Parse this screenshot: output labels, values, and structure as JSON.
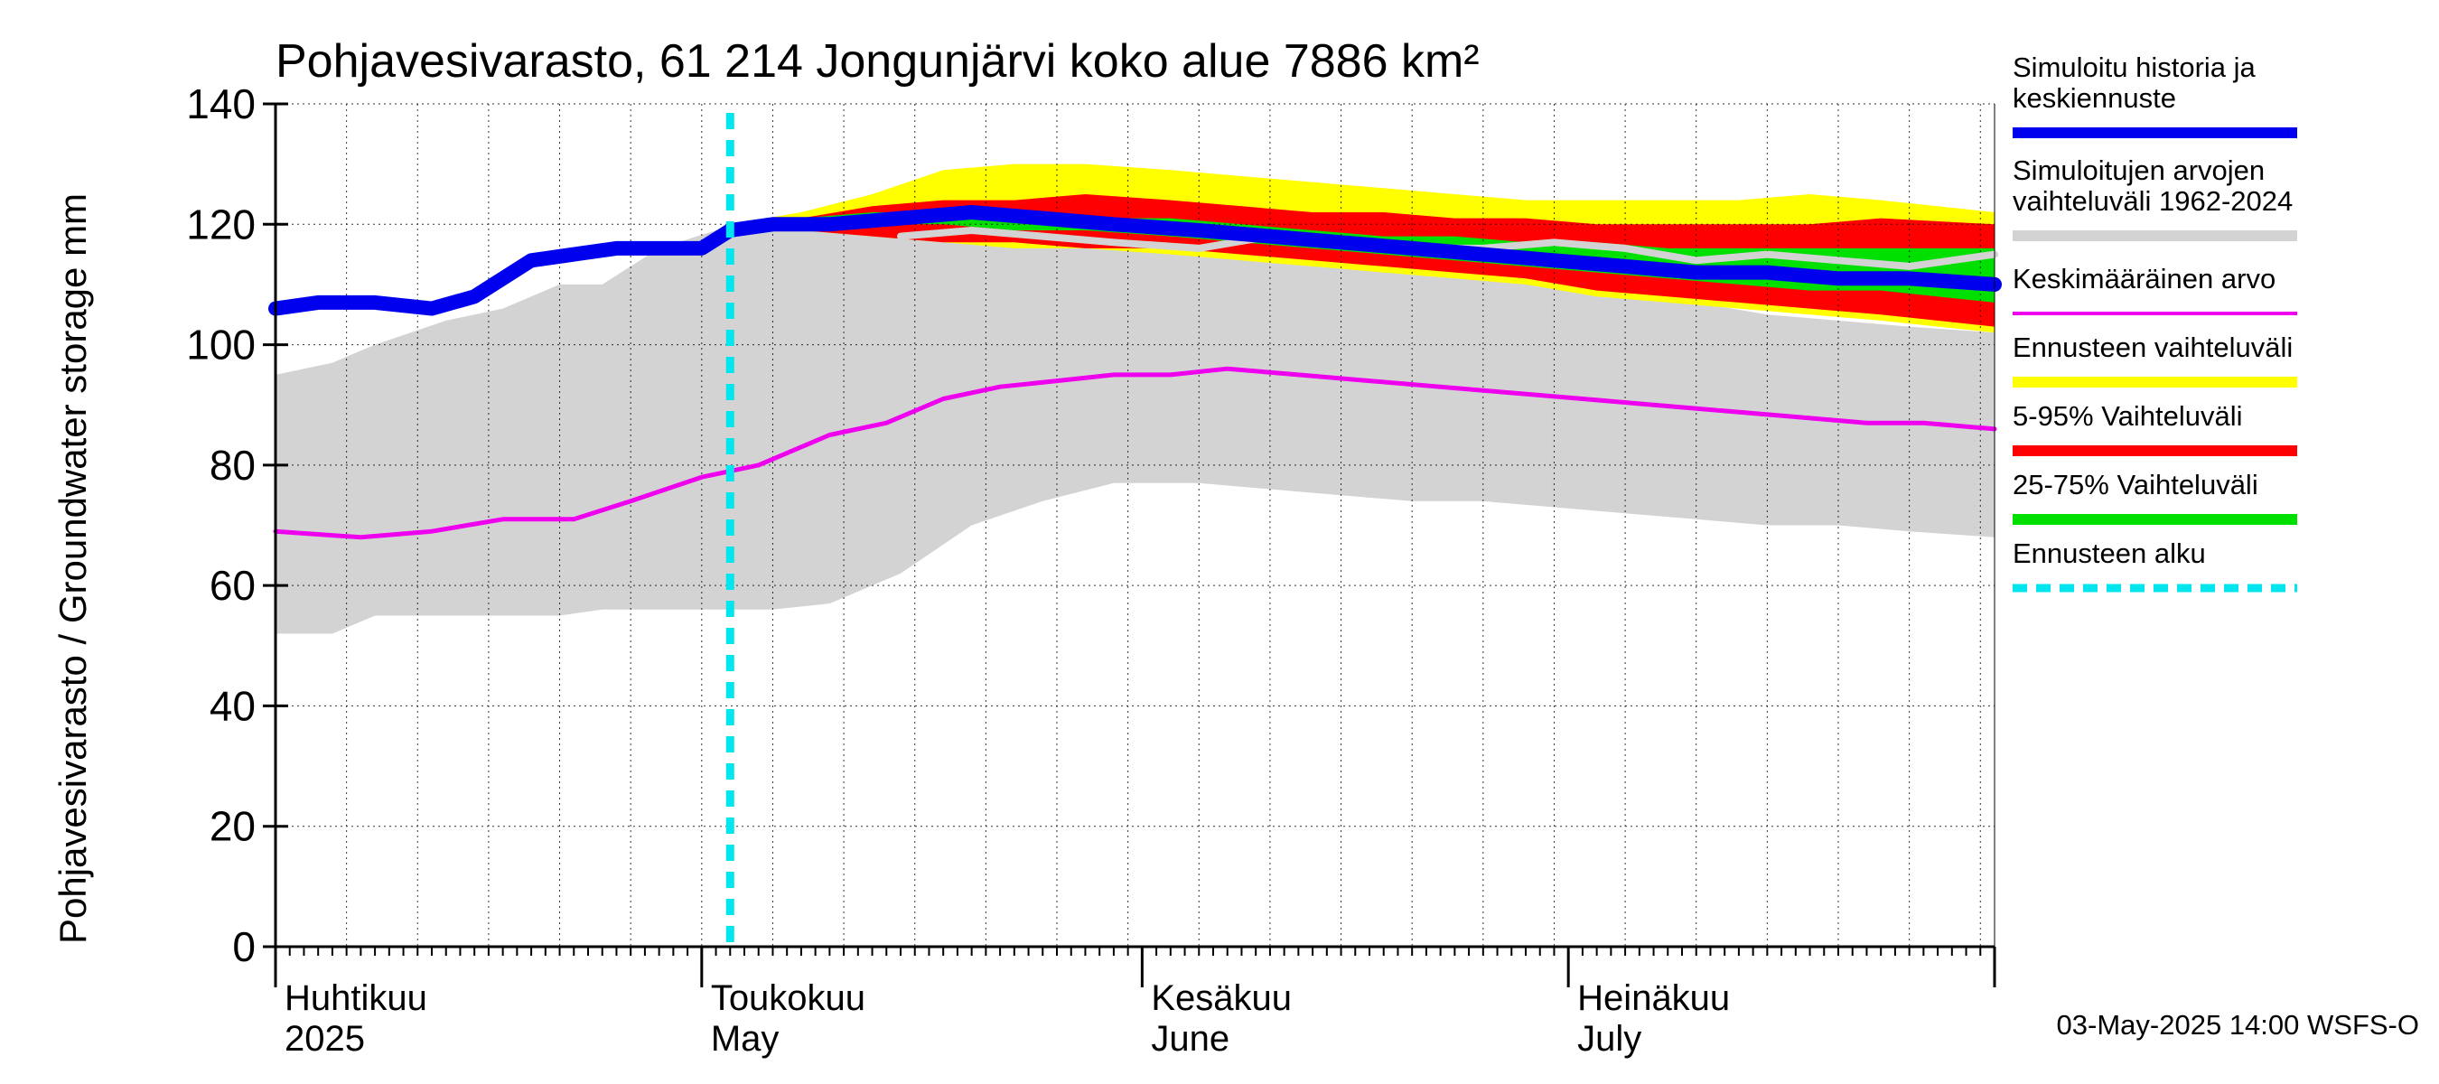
{
  "chart_data": {
    "type": "area",
    "title": "Pohjavesivarasto, 61 214 Jongunjärvi koko alue 7886 km²",
    "ylabel": "Pohjavesivarasto / Groundwater storage   mm",
    "ylim": [
      0,
      140
    ],
    "yticks": [
      0,
      20,
      40,
      60,
      80,
      100,
      120,
      140
    ],
    "grid": true,
    "legend_position": "right",
    "x_start": "2025-04-01",
    "x_end": "2025-07-31",
    "forecast_start": "2025-05-03",
    "month_labels": [
      {
        "fi": "Huhtikuu",
        "en": "2025",
        "date": "2025-04-01"
      },
      {
        "fi": "Toukokuu",
        "en": "May",
        "date": "2025-05-01"
      },
      {
        "fi": "Kesäkuu",
        "en": "June",
        "date": "2025-06-01"
      },
      {
        "fi": "Heinäkuu",
        "en": "July",
        "date": "2025-07-01"
      }
    ],
    "series": [
      {
        "name": "Simuloitujen arvojen vaihteluväli 1962-2024",
        "color": "#d3d3d3",
        "kind": "band",
        "points": [
          [
            "2025-04-01",
            52,
            95
          ],
          [
            "2025-04-05",
            52,
            97
          ],
          [
            "2025-04-08",
            55,
            100
          ],
          [
            "2025-04-13",
            55,
            104
          ],
          [
            "2025-04-17",
            55,
            106
          ],
          [
            "2025-04-21",
            55,
            110
          ],
          [
            "2025-04-24",
            56,
            110
          ],
          [
            "2025-04-28",
            56,
            116
          ],
          [
            "2025-05-02",
            56,
            119
          ],
          [
            "2025-05-06",
            56,
            120
          ],
          [
            "2025-05-10",
            57,
            121
          ],
          [
            "2025-05-15",
            62,
            121
          ],
          [
            "2025-05-20",
            70,
            120
          ],
          [
            "2025-05-25",
            74,
            119
          ],
          [
            "2025-05-30",
            77,
            118
          ],
          [
            "2025-06-05",
            77,
            117
          ],
          [
            "2025-06-10",
            76,
            116
          ],
          [
            "2025-06-15",
            75,
            115
          ],
          [
            "2025-06-20",
            74,
            113
          ],
          [
            "2025-06-25",
            74,
            112
          ],
          [
            "2025-06-30",
            73,
            110
          ],
          [
            "2025-07-05",
            72,
            109
          ],
          [
            "2025-07-10",
            71,
            107
          ],
          [
            "2025-07-15",
            70,
            105
          ],
          [
            "2025-07-20",
            70,
            104
          ],
          [
            "2025-07-25",
            69,
            103
          ],
          [
            "2025-07-31",
            68,
            102
          ]
        ]
      },
      {
        "name": "Ennusteen vaihteluväli",
        "color": "#ffff00",
        "kind": "band",
        "points": [
          [
            "2025-05-03",
            119,
            120
          ],
          [
            "2025-05-08",
            119,
            122
          ],
          [
            "2025-05-13",
            118,
            125
          ],
          [
            "2025-05-18",
            117,
            129
          ],
          [
            "2025-05-23",
            116,
            130
          ],
          [
            "2025-05-28",
            116,
            130
          ],
          [
            "2025-06-03",
            115,
            129
          ],
          [
            "2025-06-08",
            114,
            128
          ],
          [
            "2025-06-13",
            113,
            127
          ],
          [
            "2025-06-18",
            112,
            126
          ],
          [
            "2025-06-23",
            111,
            125
          ],
          [
            "2025-06-28",
            110,
            124
          ],
          [
            "2025-07-03",
            108,
            124
          ],
          [
            "2025-07-08",
            107,
            124
          ],
          [
            "2025-07-13",
            106,
            124
          ],
          [
            "2025-07-18",
            105,
            125
          ],
          [
            "2025-07-23",
            104,
            124
          ],
          [
            "2025-07-31",
            102,
            122
          ]
        ]
      },
      {
        "name": "5-95% Vaihteluväli",
        "color": "#ff0000",
        "kind": "band",
        "points": [
          [
            "2025-05-03",
            119,
            120
          ],
          [
            "2025-05-08",
            119,
            121
          ],
          [
            "2025-05-13",
            118,
            123
          ],
          [
            "2025-05-18",
            117,
            124
          ],
          [
            "2025-05-23",
            117,
            124
          ],
          [
            "2025-05-28",
            116,
            125
          ],
          [
            "2025-06-03",
            116,
            124
          ],
          [
            "2025-06-08",
            115,
            123
          ],
          [
            "2025-06-13",
            114,
            122
          ],
          [
            "2025-06-18",
            113,
            122
          ],
          [
            "2025-06-23",
            112,
            121
          ],
          [
            "2025-06-28",
            111,
            121
          ],
          [
            "2025-07-03",
            109,
            120
          ],
          [
            "2025-07-08",
            108,
            120
          ],
          [
            "2025-07-13",
            107,
            120
          ],
          [
            "2025-07-18",
            106,
            120
          ],
          [
            "2025-07-23",
            105,
            121
          ],
          [
            "2025-07-31",
            103,
            120
          ]
        ]
      },
      {
        "name": "25-75% Vaihteluväli",
        "color": "#00e000",
        "kind": "band",
        "points": [
          [
            "2025-05-03",
            119,
            120
          ],
          [
            "2025-05-08",
            120,
            121
          ],
          [
            "2025-05-13",
            120,
            122
          ],
          [
            "2025-05-18",
            120,
            122
          ],
          [
            "2025-05-23",
            119,
            122
          ],
          [
            "2025-05-28",
            119,
            121
          ],
          [
            "2025-06-03",
            118,
            121
          ],
          [
            "2025-06-08",
            117,
            120
          ],
          [
            "2025-06-13",
            116,
            119
          ],
          [
            "2025-06-18",
            115,
            118
          ],
          [
            "2025-06-23",
            114,
            118
          ],
          [
            "2025-06-28",
            113,
            117
          ],
          [
            "2025-07-03",
            112,
            117
          ],
          [
            "2025-07-08",
            111,
            116
          ],
          [
            "2025-07-13",
            110,
            116
          ],
          [
            "2025-07-18",
            109,
            116
          ],
          [
            "2025-07-23",
            109,
            116
          ],
          [
            "2025-07-31",
            107,
            116
          ]
        ]
      },
      {
        "name": "Simuloitu historia ja keskiennuste",
        "color": "#0000ee",
        "kind": "line",
        "points": [
          [
            "2025-04-01",
            106
          ],
          [
            "2025-04-04",
            107
          ],
          [
            "2025-04-08",
            107
          ],
          [
            "2025-04-12",
            106
          ],
          [
            "2025-04-15",
            108
          ],
          [
            "2025-04-19",
            114
          ],
          [
            "2025-04-22",
            115
          ],
          [
            "2025-04-25",
            116
          ],
          [
            "2025-04-29",
            116
          ],
          [
            "2025-05-01",
            116
          ],
          [
            "2025-05-03",
            119
          ],
          [
            "2025-05-06",
            120
          ],
          [
            "2025-05-10",
            120
          ],
          [
            "2025-05-15",
            121
          ],
          [
            "2025-05-20",
            122
          ],
          [
            "2025-05-25",
            121
          ],
          [
            "2025-05-30",
            120
          ],
          [
            "2025-06-05",
            119
          ],
          [
            "2025-06-10",
            118
          ],
          [
            "2025-06-15",
            117
          ],
          [
            "2025-06-20",
            116
          ],
          [
            "2025-06-25",
            115
          ],
          [
            "2025-06-30",
            114
          ],
          [
            "2025-07-05",
            113
          ],
          [
            "2025-07-10",
            112
          ],
          [
            "2025-07-15",
            112
          ],
          [
            "2025-07-20",
            111
          ],
          [
            "2025-07-25",
            111
          ],
          [
            "2025-07-31",
            110
          ]
        ]
      },
      {
        "name": "gray-line",
        "color": "#d3d3d3",
        "kind": "line",
        "points": [
          [
            "2025-05-15",
            118
          ],
          [
            "2025-05-20",
            119
          ],
          [
            "2025-05-25",
            118
          ],
          [
            "2025-05-30",
            117
          ],
          [
            "2025-06-05",
            116
          ],
          [
            "2025-06-10",
            118
          ],
          [
            "2025-06-15",
            117
          ],
          [
            "2025-06-20",
            116
          ],
          [
            "2025-06-25",
            116
          ],
          [
            "2025-06-30",
            117
          ],
          [
            "2025-07-05",
            116
          ],
          [
            "2025-07-10",
            114
          ],
          [
            "2025-07-15",
            115
          ],
          [
            "2025-07-20",
            114
          ],
          [
            "2025-07-25",
            113
          ],
          [
            "2025-07-31",
            115
          ]
        ]
      },
      {
        "name": "Keskimääräinen arvo",
        "color": "#ee00ee",
        "kind": "line",
        "points": [
          [
            "2025-04-01",
            69
          ],
          [
            "2025-04-07",
            68
          ],
          [
            "2025-04-12",
            69
          ],
          [
            "2025-04-17",
            71
          ],
          [
            "2025-04-22",
            71
          ],
          [
            "2025-04-26",
            74
          ],
          [
            "2025-05-01",
            78
          ],
          [
            "2025-05-05",
            80
          ],
          [
            "2025-05-10",
            85
          ],
          [
            "2025-05-14",
            87
          ],
          [
            "2025-05-18",
            91
          ],
          [
            "2025-05-22",
            93
          ],
          [
            "2025-05-26",
            94
          ],
          [
            "2025-05-30",
            95
          ],
          [
            "2025-06-03",
            95
          ],
          [
            "2025-06-07",
            96
          ],
          [
            "2025-06-12",
            95
          ],
          [
            "2025-06-17",
            94
          ],
          [
            "2025-06-22",
            93
          ],
          [
            "2025-06-27",
            92
          ],
          [
            "2025-07-02",
            91
          ],
          [
            "2025-07-07",
            90
          ],
          [
            "2025-07-12",
            89
          ],
          [
            "2025-07-17",
            88
          ],
          [
            "2025-07-22",
            87
          ],
          [
            "2025-07-26",
            87
          ],
          [
            "2025-07-31",
            86
          ]
        ]
      }
    ],
    "legend": [
      {
        "label": "Simuloitu historia ja keskiennuste",
        "color": "#0000ee",
        "style": "solid"
      },
      {
        "label": "Simuloitujen arvojen vaihteluväli 1962-2024",
        "color": "#d3d3d3",
        "style": "solid"
      },
      {
        "label": "Keskimääräinen arvo",
        "color": "#ee00ee",
        "style": "thin"
      },
      {
        "label": "Ennusteen vaihteluväli",
        "color": "#ffff00",
        "style": "solid"
      },
      {
        "label": "5-95% Vaihteluväli",
        "color": "#ff0000",
        "style": "solid"
      },
      {
        "label": "25-75% Vaihteluväli",
        "color": "#00e000",
        "style": "solid"
      },
      {
        "label": "Ennusteen alku",
        "color": "#00e5ee",
        "style": "dashed"
      }
    ],
    "legend_lines": [
      [
        "Simuloitu historia ja",
        "keskiennuste"
      ],
      [
        "Simuloitujen arvojen",
        "vaihteluväli 1962-2024"
      ],
      [
        "Keskimääräinen arvo"
      ],
      [
        "Ennusteen vaihteluväli"
      ],
      [
        "5-95% Vaihteluväli"
      ],
      [
        "25-75% Vaihteluväli"
      ],
      [
        "Ennusteen alku"
      ]
    ],
    "footer": "03-May-2025 14:00 WSFS-O"
  }
}
